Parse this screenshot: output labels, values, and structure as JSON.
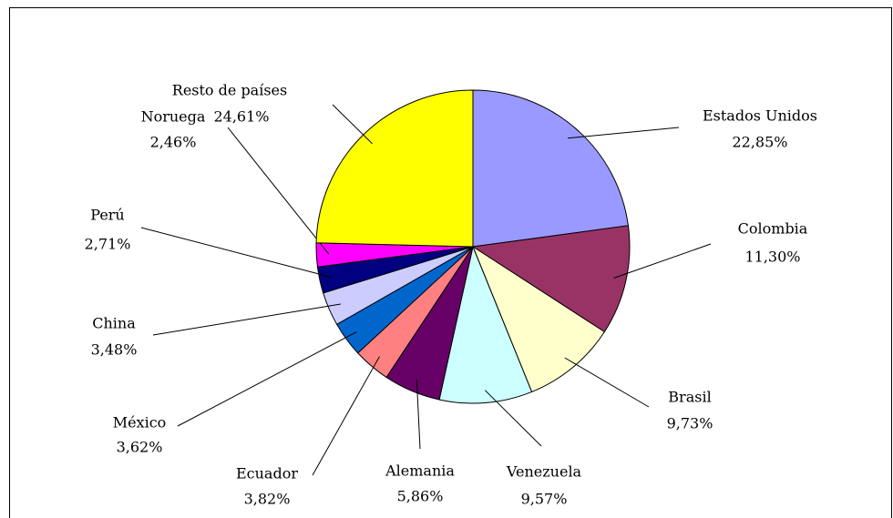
{
  "chart_data": {
    "type": "pie",
    "categories": [
      "Estados Unidos",
      "Colombia",
      "Brasil",
      "Venezuela",
      "Alemania",
      "Ecuador",
      "México",
      "China",
      "Perú",
      "Noruega",
      "Resto de países"
    ],
    "values": [
      22.85,
      11.3,
      9.73,
      9.57,
      5.86,
      3.82,
      3.62,
      3.48,
      2.71,
      2.46,
      24.61
    ],
    "value_labels": [
      "22,85%",
      "11,30%",
      "9,73%",
      "9,57%",
      "5,86%",
      "3,82%",
      "3,62%",
      "3,48%",
      "2,71%",
      "2,46%",
      "24,61%"
    ],
    "colors": [
      "#9999ff",
      "#993366",
      "#ffffcc",
      "#ccffff",
      "#660066",
      "#ff8080",
      "#0066cc",
      "#ccccff",
      "#000080",
      "#ff00ff",
      "#ffff00"
    ]
  }
}
